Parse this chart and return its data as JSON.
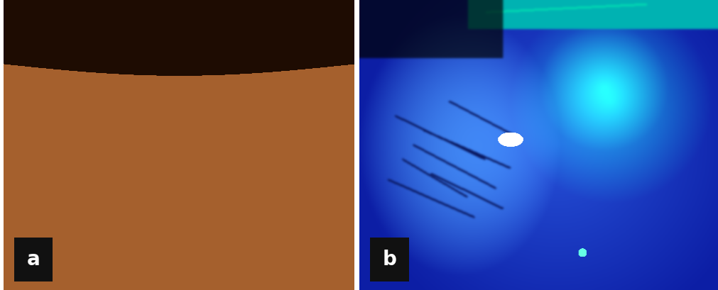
{
  "fig_width": 10.11,
  "fig_height": 4.09,
  "dpi": 100,
  "bg_color": "#ffffff",
  "label_a": "a",
  "label_b": "b",
  "label_fontsize": 20,
  "label_color": "#ffffff",
  "label_bg": "#111111",
  "panel_a_bg": "#c07840",
  "panel_b_bg": "#1030aa"
}
